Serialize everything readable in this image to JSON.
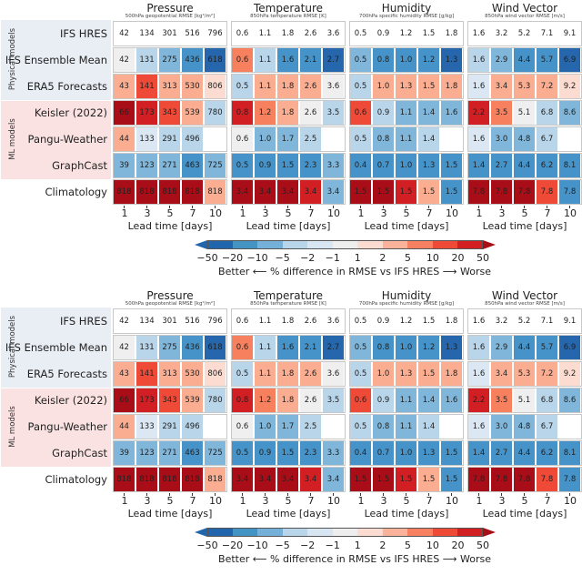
{
  "chart_data": {
    "type": "heatmap",
    "title": "",
    "xlabel": "Lead time [days]",
    "x_ticks": [
      1,
      3,
      5,
      7,
      10
    ],
    "row_groups": [
      {
        "label": "Physical models",
        "rows": [
          "IFS HRES",
          "IFS Ensemble Mean",
          "ERA5 Forecasts"
        ]
      },
      {
        "label": "ML models",
        "rows": [
          "Keisler (2022)",
          "Pangu-Weather",
          "GraphCast"
        ]
      },
      {
        "label": "",
        "rows": [
          "Climatology"
        ]
      }
    ],
    "rows": [
      "IFS HRES",
      "IFS Ensemble Mean",
      "ERA5 Forecasts",
      "Keisler (2022)",
      "Pangu-Weather",
      "GraphCast",
      "Climatology"
    ],
    "variables": [
      {
        "title": "Pressure",
        "subtitle": "500hPa geopotential RMSE [kg²/m²]",
        "values": [
          [
            "42",
            "134",
            "301",
            "516",
            "796"
          ],
          [
            "42",
            "131",
            "275",
            "436",
            "618"
          ],
          [
            "43",
            "141",
            "313",
            "530",
            "806"
          ],
          [
            "66",
            "173",
            "343",
            "539",
            "780"
          ],
          [
            "44",
            "133",
            "291",
            "496",
            ""
          ],
          [
            "39",
            "123",
            "271",
            "463",
            "725"
          ],
          [
            "818",
            "818",
            "818",
            "818",
            "818"
          ]
        ],
        "color_bins": [
          [
            null,
            null,
            null,
            null,
            null
          ],
          [
            0,
            -2,
            -3,
            -4,
            -5
          ],
          [
            2,
            4,
            2,
            2,
            1
          ],
          [
            6,
            5,
            4,
            2,
            -2
          ],
          [
            2,
            -1,
            -2,
            -2,
            null
          ],
          [
            -3,
            -3,
            -3,
            -4,
            -3
          ],
          [
            6,
            6,
            6,
            6,
            2
          ]
        ]
      },
      {
        "title": "Temperature",
        "subtitle": "850hPa temperature RMSE [K]",
        "values": [
          [
            "0.6",
            "1.1",
            "1.8",
            "2.6",
            "3.6"
          ],
          [
            "0.6",
            "1.1",
            "1.6",
            "2.1",
            "2.7"
          ],
          [
            "0.5",
            "1.1",
            "1.8",
            "2.6",
            "3.6"
          ],
          [
            "0.8",
            "1.2",
            "1.8",
            "2.6",
            "3.5"
          ],
          [
            "0.6",
            "1.0",
            "1.7",
            "2.5",
            ""
          ],
          [
            "0.5",
            "0.9",
            "1.5",
            "2.3",
            "3.3"
          ],
          [
            "3.4",
            "3.4",
            "3.4",
            "3.4",
            "3.4"
          ]
        ],
        "color_bins": [
          [
            null,
            null,
            null,
            null,
            null
          ],
          [
            3,
            -2,
            -4,
            -4,
            -5
          ],
          [
            -2,
            2,
            2,
            2,
            0
          ],
          [
            5,
            3,
            2,
            0,
            -2
          ],
          [
            0,
            -3,
            -3,
            -2,
            null
          ],
          [
            -4,
            -4,
            -4,
            -4,
            -3
          ],
          [
            6,
            6,
            6,
            5,
            -3
          ]
        ]
      },
      {
        "title": "Humidity",
        "subtitle": "700hPa specific humidity RMSE [g/kg]",
        "values": [
          [
            "0.5",
            "0.9",
            "1.2",
            "1.5",
            "1.8"
          ],
          [
            "0.5",
            "0.8",
            "1.0",
            "1.2",
            "1.3"
          ],
          [
            "0.5",
            "1.0",
            "1.3",
            "1.5",
            "1.8"
          ],
          [
            "0.6",
            "0.9",
            "1.1",
            "1.4",
            "1.6"
          ],
          [
            "0.5",
            "0.8",
            "1.1",
            "1.4",
            ""
          ],
          [
            "0.4",
            "0.7",
            "1.0",
            "1.3",
            "1.5"
          ],
          [
            "1.5",
            "1.5",
            "1.5",
            "1.5",
            "1.5"
          ]
        ],
        "color_bins": [
          [
            null,
            null,
            null,
            null,
            null
          ],
          [
            -3,
            -4,
            -4,
            -4,
            -5
          ],
          [
            -2,
            2,
            2,
            2,
            2
          ],
          [
            4,
            -2,
            -3,
            -3,
            -3
          ],
          [
            -2,
            -3,
            -3,
            -2,
            null
          ],
          [
            -4,
            -4,
            -4,
            -4,
            -4
          ],
          [
            6,
            6,
            5,
            2,
            -4
          ]
        ]
      },
      {
        "title": "Wind Vector",
        "subtitle": "850hPa wind vector RMSE [m/s]",
        "values": [
          [
            "1.6",
            "3.2",
            "5.2",
            "7.1",
            "9.1"
          ],
          [
            "1.6",
            "2.9",
            "4.4",
            "5.7",
            "6.9"
          ],
          [
            "1.6",
            "3.4",
            "5.3",
            "7.2",
            "9.2"
          ],
          [
            "2.2",
            "3.5",
            "5.1",
            "6.8",
            "8.6"
          ],
          [
            "1.6",
            "3.0",
            "4.8",
            "6.7",
            ""
          ],
          [
            "1.4",
            "2.7",
            "4.4",
            "6.2",
            "8.1"
          ],
          [
            "7.8",
            "7.8",
            "7.8",
            "7.8",
            "7.8"
          ]
        ],
        "color_bins": [
          [
            null,
            null,
            null,
            null,
            null
          ],
          [
            -2,
            -3,
            -4,
            -4,
            -5
          ],
          [
            -1,
            2,
            2,
            2,
            1
          ],
          [
            5,
            3,
            0,
            -2,
            -3
          ],
          [
            -1,
            -3,
            -3,
            -2,
            null
          ],
          [
            -4,
            -4,
            -4,
            -4,
            -4
          ],
          [
            6,
            6,
            6,
            4,
            -4
          ]
        ]
      }
    ],
    "colorbar": {
      "ticks": [
        "−50",
        "−20",
        "−10",
        "−5",
        "−2",
        "−1",
        "1",
        "2",
        "5",
        "10",
        "20",
        "50"
      ],
      "label": "Better ⟵ % difference in RMSE vs IFS HRES ⟶ Worse",
      "colors_blue_to_red": [
        "#2166ac",
        "#4393c3",
        "#75b0d8",
        "#b8d5ea",
        "#d8e6f3",
        "#eeeeee",
        "#fcdcd0",
        "#fbb29a",
        "#f77f62",
        "#ef4a37",
        "#d11f22"
      ],
      "extend_min_color": "#2166ac",
      "extend_max_color": "#a50f15"
    },
    "bin_color_map": {
      "-5": "#2566ac",
      "-4": "#4593c8",
      "-3": "#7fb6da",
      "-2": "#b9d5ea",
      "-1": "#dbe8f4",
      "0": "#efefef",
      "1": "#fcdcd0",
      "2": "#fbad91",
      "3": "#f7805f",
      "4": "#ef4a37",
      "5": "#d21f24",
      "6": "#a90e18",
      "null": "#ffffff"
    },
    "panels_repeated": 2
  }
}
